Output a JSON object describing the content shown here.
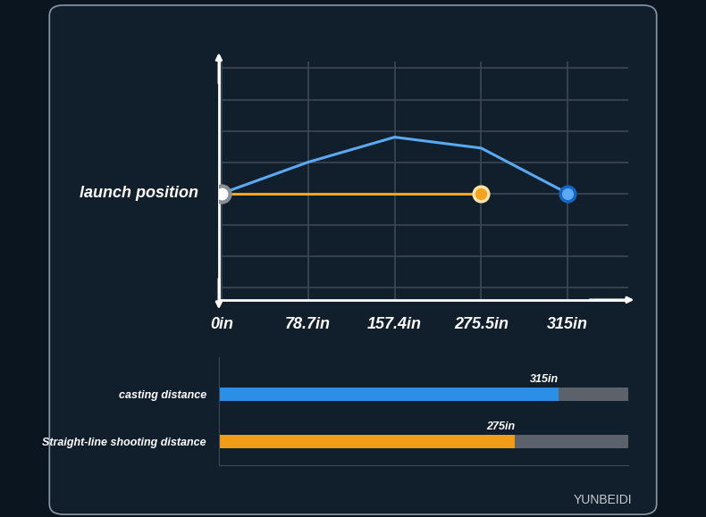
{
  "brand": "YUNBEIDI",
  "chart_data": [
    {
      "type": "line",
      "annotations": [
        "launch position"
      ],
      "categories": [
        "0in",
        "78.7in",
        "157.4in",
        "275.5in",
        "315in"
      ],
      "series": [
        {
          "color": "#5aa9f2",
          "values": [
            0,
            1.0,
            1.8,
            1.45,
            0
          ],
          "marker": "o",
          "line_style": "solid"
        },
        {
          "color": "#f5a21e",
          "values": [
            0,
            0,
            0,
            0,
            null
          ],
          "marker": "o",
          "line_style": "solid"
        }
      ],
      "ylim": [
        -3.4,
        4.2
      ],
      "yticks": [
        -3,
        -2,
        -1,
        0,
        1,
        2,
        3,
        4
      ],
      "grid": true,
      "tick_labels": "x"
    },
    {
      "type": "bar",
      "orientation": "horizontal",
      "categories": [
        "casting distance",
        "Straight-line shooting distance"
      ],
      "values": [
        315,
        275
      ],
      "value_labels": [
        "315in",
        "275in"
      ],
      "colors": [
        "#2b8fe8",
        "#f29d1a"
      ],
      "xlim": [
        0,
        380
      ],
      "data_labels": true,
      "tick_labels": "y"
    }
  ]
}
